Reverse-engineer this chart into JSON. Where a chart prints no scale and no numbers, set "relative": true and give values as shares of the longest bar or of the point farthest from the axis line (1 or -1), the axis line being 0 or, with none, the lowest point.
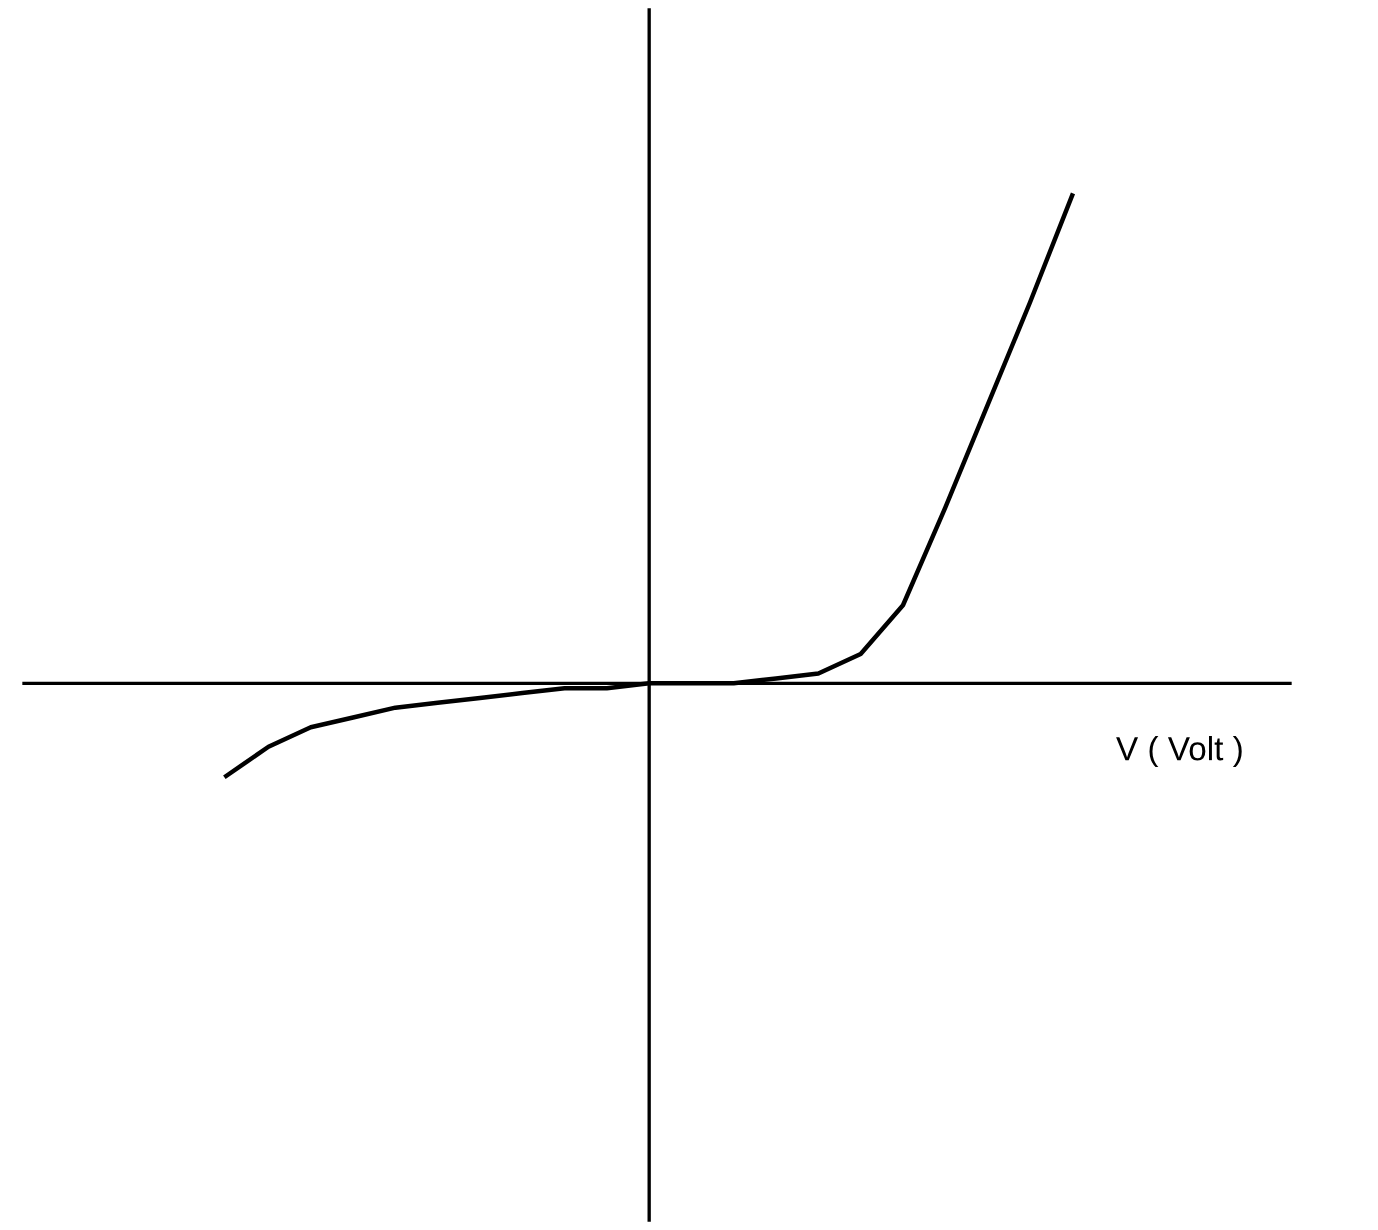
{
  "chart_data": {
    "type": "line",
    "relative": true,
    "xlabel": "V ( Volt )",
    "categories": [
      null,
      null,
      null,
      null,
      null,
      null,
      null,
      null,
      null,
      null,
      null,
      null,
      null,
      null,
      null,
      null,
      null,
      null,
      null,
      null,
      null
    ],
    "series": [
      {
        "color": "#000000",
        "values": [
          -0.19,
          -0.13,
          -0.09,
          -0.07,
          -0.05,
          -0.04,
          -0.03,
          -0.02,
          -0.01,
          -0.01,
          0,
          0,
          0,
          0.01,
          0.02,
          0.06,
          0.16,
          0.36,
          0.57,
          0.78,
          1
        ]
      }
    ],
    "grid": false,
    "legend": false,
    "marker": "none",
    "line_style": "solid"
  }
}
